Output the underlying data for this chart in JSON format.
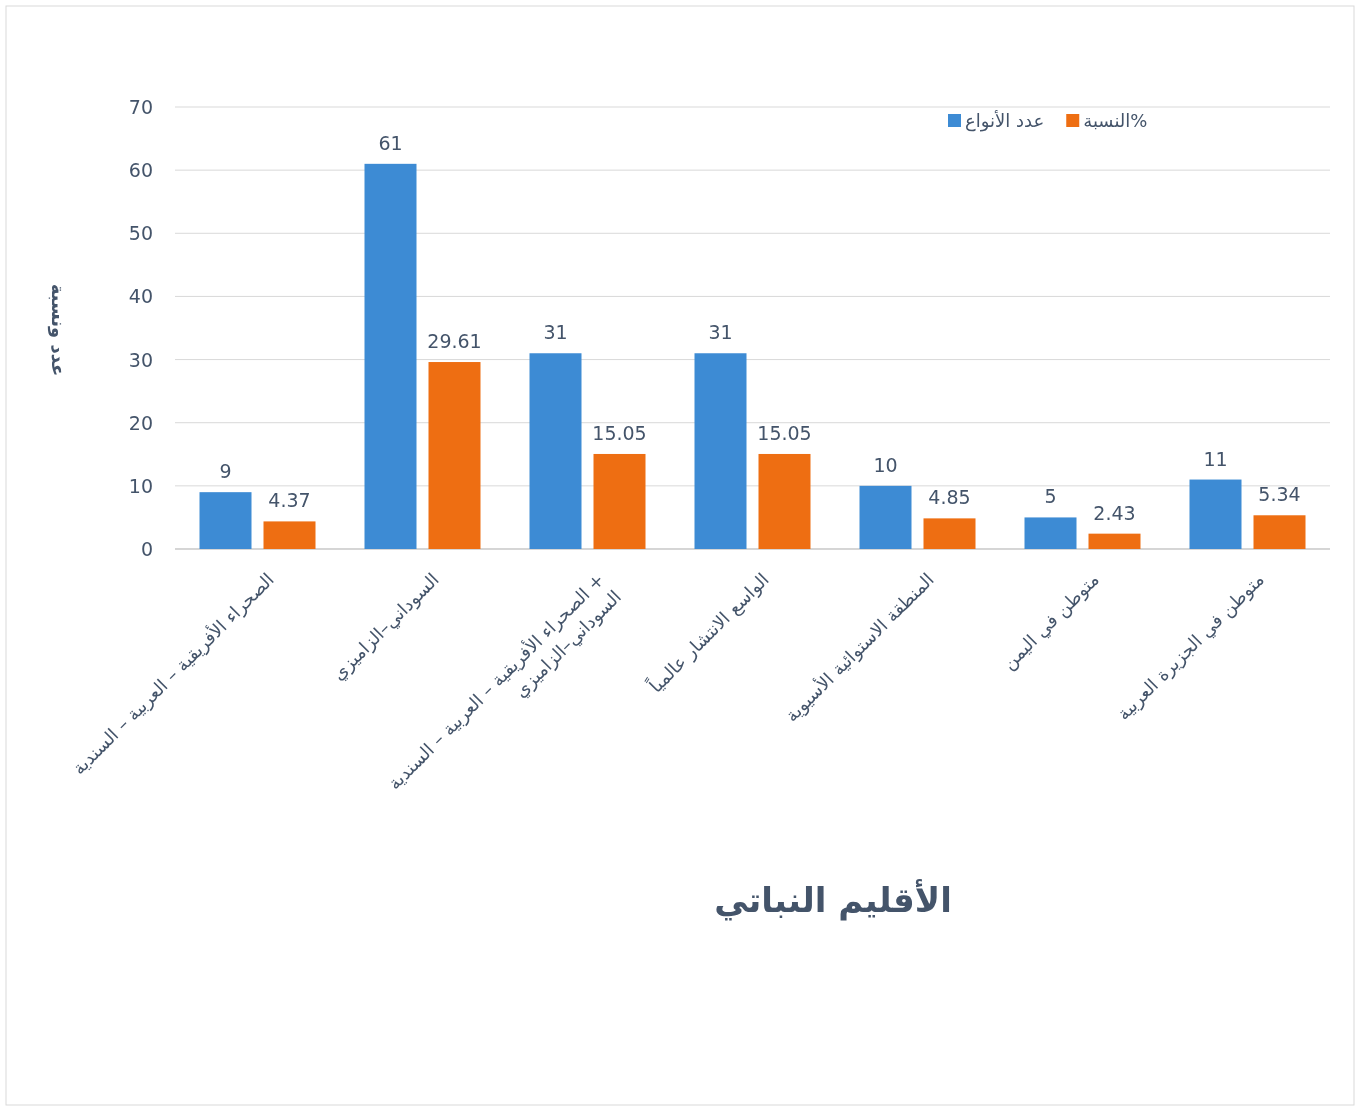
{
  "chart_data": {
    "type": "bar",
    "xlabel": "الأقليم النباتي",
    "ylabel": "عدد ونسبة",
    "categories": [
      "الصحراء الأفريقية – العربية – السندية",
      "السوداني–الزاميزي",
      "الصحراء الأفريقية – العربية – السندية + السوداني–الزاميزي",
      "الواسع الانتشار عالمياً",
      "المنطقة الاستوائية الأسيوية",
      "متوطن في اليمن",
      "متوطن في الجزيرة العربية"
    ],
    "series": [
      {
        "name": "عدد الأنواع",
        "color": "#3d8bd4",
        "values": [
          9,
          61,
          31,
          31,
          10,
          5,
          11
        ]
      },
      {
        "name": "النسبة%",
        "color": "#ee6e12",
        "values": [
          4.37,
          29.61,
          15.05,
          15.05,
          4.85,
          2.43,
          5.34
        ]
      }
    ],
    "ylim": [
      0,
      70
    ],
    "yticks": [
      0,
      10,
      20,
      30,
      40,
      50,
      60,
      70
    ],
    "grid": "y",
    "legend": "top right",
    "data_labels": true
  }
}
